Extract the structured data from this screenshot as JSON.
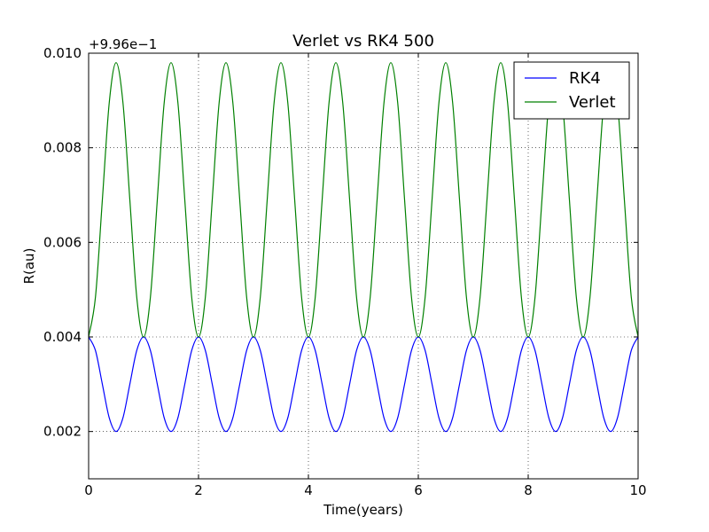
{
  "chart_data": {
    "type": "line",
    "title": "Verlet vs RK4  500",
    "xlabel": "Time(years)",
    "ylabel": "R(au)",
    "offset_text": "+9.96e−1",
    "xlim": [
      0,
      10
    ],
    "ylim": [
      0.001,
      0.01
    ],
    "x_ticks": [
      0,
      2,
      4,
      6,
      8,
      10
    ],
    "x_tick_labels": [
      "0",
      "2",
      "4",
      "6",
      "8",
      "10"
    ],
    "y_ticks": [
      0.002,
      0.004,
      0.006,
      0.008,
      0.01
    ],
    "y_tick_labels": [
      "0.002",
      "0.004",
      "0.006",
      "0.008",
      "0.010"
    ],
    "grid": true,
    "legend_position": "top-right",
    "series": [
      {
        "name": "RK4",
        "color": "#0000ff",
        "x": [
          0.0,
          0.125,
          0.25,
          0.375,
          0.5,
          0.625,
          0.75,
          0.875,
          1.0,
          1.125,
          1.25,
          1.375,
          1.5,
          1.625,
          1.75,
          1.875,
          2.0,
          2.125,
          2.25,
          2.375,
          2.5,
          2.625,
          2.75,
          2.875,
          3.0,
          3.125,
          3.25,
          3.375,
          3.5,
          3.625,
          3.75,
          3.875,
          4.0,
          4.125,
          4.25,
          4.375,
          4.5,
          4.625,
          4.75,
          4.875,
          5.0,
          5.125,
          5.25,
          5.375,
          5.5,
          5.625,
          5.75,
          5.875,
          6.0,
          6.125,
          6.25,
          6.375,
          6.5,
          6.625,
          6.75,
          6.875,
          7.0,
          7.125,
          7.25,
          7.375,
          7.5,
          7.625,
          7.75,
          7.875,
          8.0,
          8.125,
          8.25,
          8.375,
          8.5,
          8.625,
          8.75,
          8.875,
          9.0,
          9.125,
          9.25,
          9.375,
          9.5,
          9.625,
          9.75,
          9.875,
          10.0
        ],
        "y": [
          0.004,
          0.00371,
          0.003,
          0.00229,
          0.002,
          0.00229,
          0.003,
          0.00371,
          0.004,
          0.00371,
          0.003,
          0.00229,
          0.002,
          0.00229,
          0.003,
          0.00371,
          0.004,
          0.00371,
          0.003,
          0.00229,
          0.002,
          0.00229,
          0.003,
          0.00371,
          0.004,
          0.00371,
          0.003,
          0.00229,
          0.002,
          0.00229,
          0.003,
          0.00371,
          0.004,
          0.00371,
          0.003,
          0.00229,
          0.002,
          0.00229,
          0.003,
          0.00371,
          0.004,
          0.00371,
          0.003,
          0.00229,
          0.002,
          0.00229,
          0.003,
          0.00371,
          0.004,
          0.00371,
          0.003,
          0.00229,
          0.002,
          0.00229,
          0.003,
          0.00371,
          0.004,
          0.00371,
          0.003,
          0.00229,
          0.002,
          0.00229,
          0.003,
          0.00371,
          0.004,
          0.00371,
          0.003,
          0.00229,
          0.002,
          0.00229,
          0.003,
          0.00371,
          0.004,
          0.00371,
          0.003,
          0.00229,
          0.002,
          0.00229,
          0.003,
          0.00371,
          0.004
        ]
      },
      {
        "name": "Verlet",
        "color": "#008000",
        "x": [
          0.0,
          0.125,
          0.25,
          0.375,
          0.5,
          0.625,
          0.75,
          0.875,
          1.0,
          1.125,
          1.25,
          1.375,
          1.5,
          1.625,
          1.75,
          1.875,
          2.0,
          2.125,
          2.25,
          2.375,
          2.5,
          2.625,
          2.75,
          2.875,
          3.0,
          3.125,
          3.25,
          3.375,
          3.5,
          3.625,
          3.75,
          3.875,
          4.0,
          4.125,
          4.25,
          4.375,
          4.5,
          4.625,
          4.75,
          4.875,
          5.0,
          5.125,
          5.25,
          5.375,
          5.5,
          5.625,
          5.75,
          5.875,
          6.0,
          6.125,
          6.25,
          6.375,
          6.5,
          6.625,
          6.75,
          6.875,
          7.0,
          7.125,
          7.25,
          7.375,
          7.5,
          7.625,
          7.75,
          7.875,
          8.0,
          8.125,
          8.25,
          8.375,
          8.5,
          8.625,
          8.75,
          8.875,
          9.0,
          9.125,
          9.25,
          9.375,
          9.5,
          9.625,
          9.75,
          9.875,
          10.0
        ],
        "y": [
          0.004,
          0.00485,
          0.0069,
          0.00895,
          0.0098,
          0.00895,
          0.0069,
          0.00485,
          0.004,
          0.00485,
          0.0069,
          0.00895,
          0.0098,
          0.00895,
          0.0069,
          0.00485,
          0.004,
          0.00485,
          0.0069,
          0.00895,
          0.0098,
          0.00895,
          0.0069,
          0.00485,
          0.004,
          0.00485,
          0.0069,
          0.00895,
          0.0098,
          0.00895,
          0.0069,
          0.00485,
          0.004,
          0.00485,
          0.0069,
          0.00895,
          0.0098,
          0.00895,
          0.0069,
          0.00485,
          0.004,
          0.00485,
          0.0069,
          0.00895,
          0.0098,
          0.00895,
          0.0069,
          0.00485,
          0.004,
          0.00485,
          0.0069,
          0.00895,
          0.0098,
          0.00895,
          0.0069,
          0.00485,
          0.004,
          0.00485,
          0.0069,
          0.00895,
          0.0098,
          0.00895,
          0.0069,
          0.00485,
          0.004,
          0.00485,
          0.0069,
          0.00895,
          0.0098,
          0.00895,
          0.0069,
          0.00485,
          0.004,
          0.00485,
          0.0069,
          0.00895,
          0.0098,
          0.00895,
          0.0069,
          0.00485,
          0.004
        ]
      }
    ]
  }
}
